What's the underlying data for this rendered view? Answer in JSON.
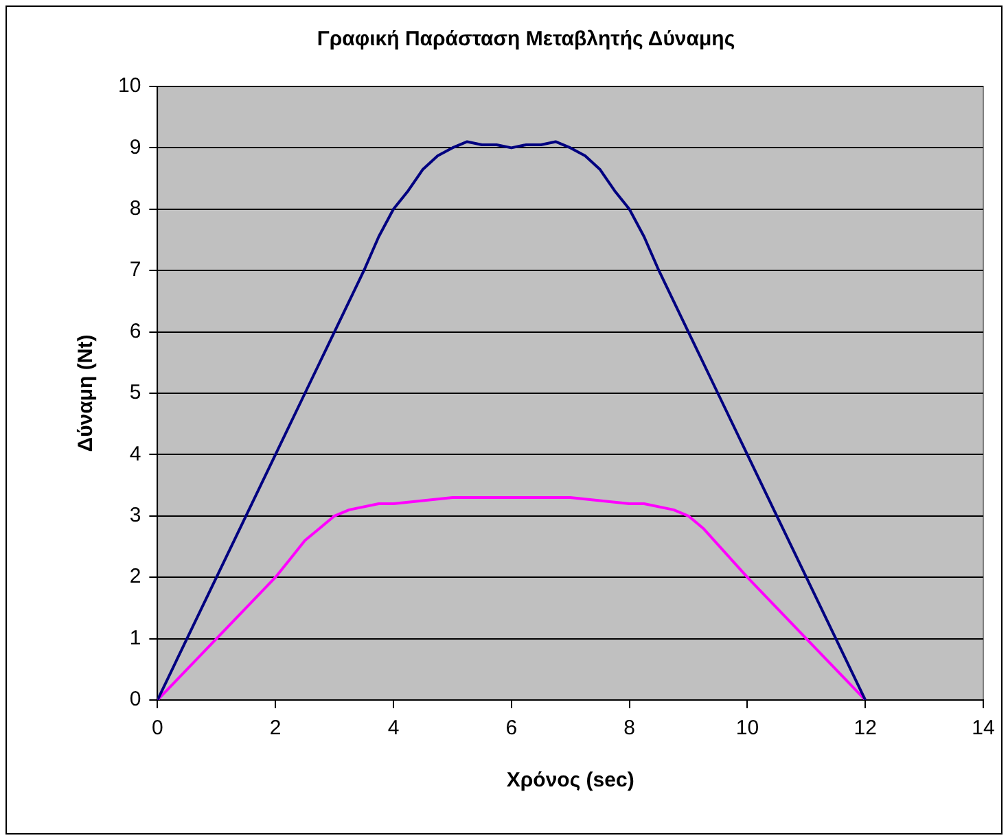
{
  "chart_data": {
    "type": "line",
    "title": "Γραφική Παράσταση Μεταβλητής Δύναμης",
    "xlabel": "Χρόνος (sec)",
    "ylabel": "Δύναμη (Nt)",
    "xlim": [
      0,
      14
    ],
    "xticks": [
      0,
      2,
      4,
      6,
      8,
      10,
      12,
      14
    ],
    "ylim": [
      0,
      10
    ],
    "yticks": [
      0,
      1,
      2,
      3,
      4,
      5,
      6,
      7,
      8,
      9,
      10
    ],
    "grid": "y",
    "legend": false,
    "marker": "none",
    "line_style": "solid",
    "series": [
      {
        "color": "#000080",
        "x": [
          0,
          2,
          2.5,
          3,
          3.25,
          3.5,
          3.75,
          4,
          4.25,
          4.5,
          4.75,
          5,
          5.25,
          5.5,
          5.75,
          6,
          6.25,
          6.5,
          6.75,
          7,
          7.25,
          7.5,
          7.75,
          8,
          8.25,
          8.5,
          9,
          9.5,
          10,
          10.5,
          11,
          12
        ],
        "values": [
          0,
          4,
          5,
          6,
          6.5,
          7,
          7.55,
          8,
          8.3,
          8.65,
          8.87,
          9,
          9.1,
          9.05,
          9.05,
          9,
          9.05,
          9.05,
          9.1,
          9,
          8.87,
          8.65,
          8.3,
          8,
          7.55,
          7,
          6,
          5,
          4,
          3,
          2,
          0
        ]
      },
      {
        "color": "#ff00ff",
        "x": [
          0,
          1,
          2,
          2.25,
          2.5,
          2.75,
          3,
          3.25,
          3.75,
          4,
          4.5,
          5,
          7,
          7.5,
          8,
          8.25,
          8.75,
          9,
          9.25,
          10,
          10.5,
          11,
          12
        ],
        "values": [
          0,
          1,
          2,
          2.3,
          2.6,
          2.8,
          3,
          3.1,
          3.2,
          3.2,
          3.25,
          3.3,
          3.3,
          3.25,
          3.2,
          3.2,
          3.1,
          3,
          2.8,
          2,
          1.5,
          1,
          0
        ]
      }
    ]
  }
}
